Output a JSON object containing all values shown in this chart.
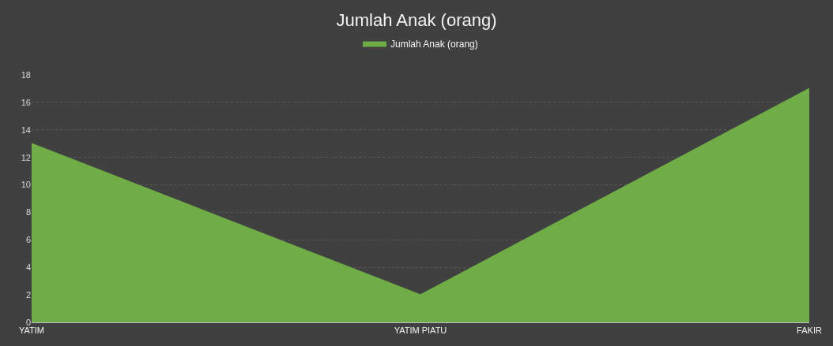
{
  "chart_data": {
    "type": "area",
    "title": "Jumlah Anak (orang)",
    "categories": [
      "YATIM",
      "YATIM PIATU",
      "FAKIR"
    ],
    "series": [
      {
        "name": "Jumlah Anak (orang)",
        "color": "#70ad47",
        "values": [
          13,
          2,
          17
        ]
      }
    ],
    "ylim": [
      0,
      18
    ],
    "yticks": [
      0,
      2,
      4,
      6,
      8,
      10,
      12,
      14,
      16,
      18
    ],
    "grid": "y",
    "legend": "top"
  }
}
